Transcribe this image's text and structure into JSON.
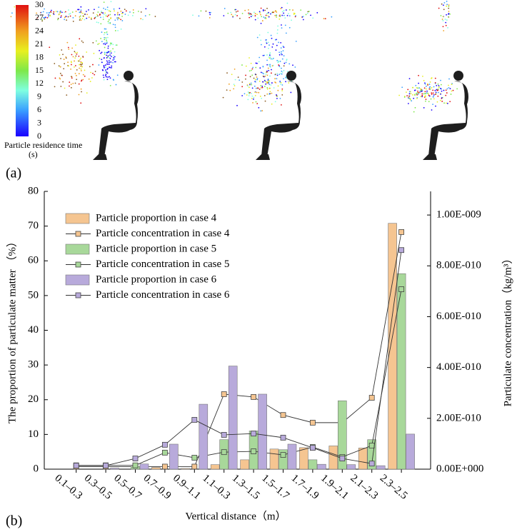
{
  "panel_labels": [
    "(a)",
    "(b)"
  ],
  "colorbar": {
    "title": "Particle residence time",
    "unit": "(s)",
    "ticks": [
      0,
      3,
      6,
      9,
      12,
      15,
      18,
      21,
      24,
      27,
      30
    ],
    "lim": [
      0,
      30
    ]
  },
  "chart_data": {
    "type": "bar",
    "x_label": "Vertical distance（m）",
    "y_label": "The proportion of particulate matter （%）",
    "y2_label": "Particulate concentration（kg/m³）",
    "categories": [
      "0.1–0.3",
      "0.3–0.5",
      "0.5–0.7",
      "0.7–0.9",
      "0.9–1.1",
      "1.1–0.3",
      "1.3–1.5",
      "1.5–1.7",
      "1.7–1.9",
      "1.9–2.1",
      "2.1–2.3",
      "2.3–2.5"
    ],
    "ylim": [
      0,
      80
    ],
    "yticks": [
      0,
      10,
      20,
      30,
      40,
      50,
      60,
      70,
      80
    ],
    "y2lim": [
      0,
      1.093e-09
    ],
    "y2ticks": [
      {
        "value": 0,
        "label": "0.00E+000"
      },
      {
        "value": 2e-10,
        "label": "2.00E-010"
      },
      {
        "value": 4e-10,
        "label": "4.00E-010"
      },
      {
        "value": 6e-10,
        "label": "6.00E-010"
      },
      {
        "value": 8e-10,
        "label": "8.00E-010"
      },
      {
        "value": 1e-09,
        "label": "1.00E-009"
      }
    ],
    "legend": "upper left",
    "series": [
      {
        "name": "Particle proportion in case 4",
        "type": "bar",
        "color": "#f5c591",
        "values": [
          0,
          0,
          0,
          0.5,
          0.2,
          1.3,
          2.7,
          5.8,
          6.2,
          6.7,
          6.1,
          70.8
        ]
      },
      {
        "name": "Particle concentration in case 4",
        "type": "line",
        "axis": "y2",
        "color": "#f5c591",
        "values": [
          1e-11,
          1e-11,
          1e-11,
          1e-11,
          1e-11,
          2.95e-10,
          2.84e-10,
          2.13e-10,
          1.83e-10,
          1.83e-10,
          2.81e-10,
          9.33e-10
        ]
      },
      {
        "name": "Particle proportion in case 5",
        "type": "bar",
        "color": "#a8d89a",
        "values": [
          0,
          0,
          0.8,
          0,
          0,
          8.5,
          11,
          5.6,
          2.7,
          19.7,
          8.5,
          56.3
        ]
      },
      {
        "name": "Particle concentration in case 5",
        "type": "line",
        "axis": "y2",
        "color": "#a8d89a",
        "values": [
          1.5e-11,
          1.5e-11,
          1.5e-11,
          6.5e-11,
          4.5e-11,
          6.7e-11,
          7e-11,
          5.6e-11,
          8.7e-11,
          4.8e-11,
          9.3e-11,
          7.08e-10
        ]
      },
      {
        "name": "Particle proportion in case 6",
        "type": "bar",
        "color": "#b8aadb",
        "values": [
          0,
          0.3,
          1.5,
          7.2,
          18.7,
          29.7,
          21.6,
          7.2,
          1.4,
          1.3,
          1.0,
          10.1
        ]
      },
      {
        "name": "Particle concentration in case 6",
        "type": "line",
        "axis": "y2",
        "color": "#b8aadb",
        "values": [
          1.4e-11,
          1.4e-11,
          4.2e-11,
          9.6e-11,
          1.94e-10,
          1.35e-10,
          1.4e-10,
          1.24e-10,
          8.4e-11,
          4.2e-11,
          2.2e-11,
          8.62e-10
        ]
      }
    ]
  }
}
